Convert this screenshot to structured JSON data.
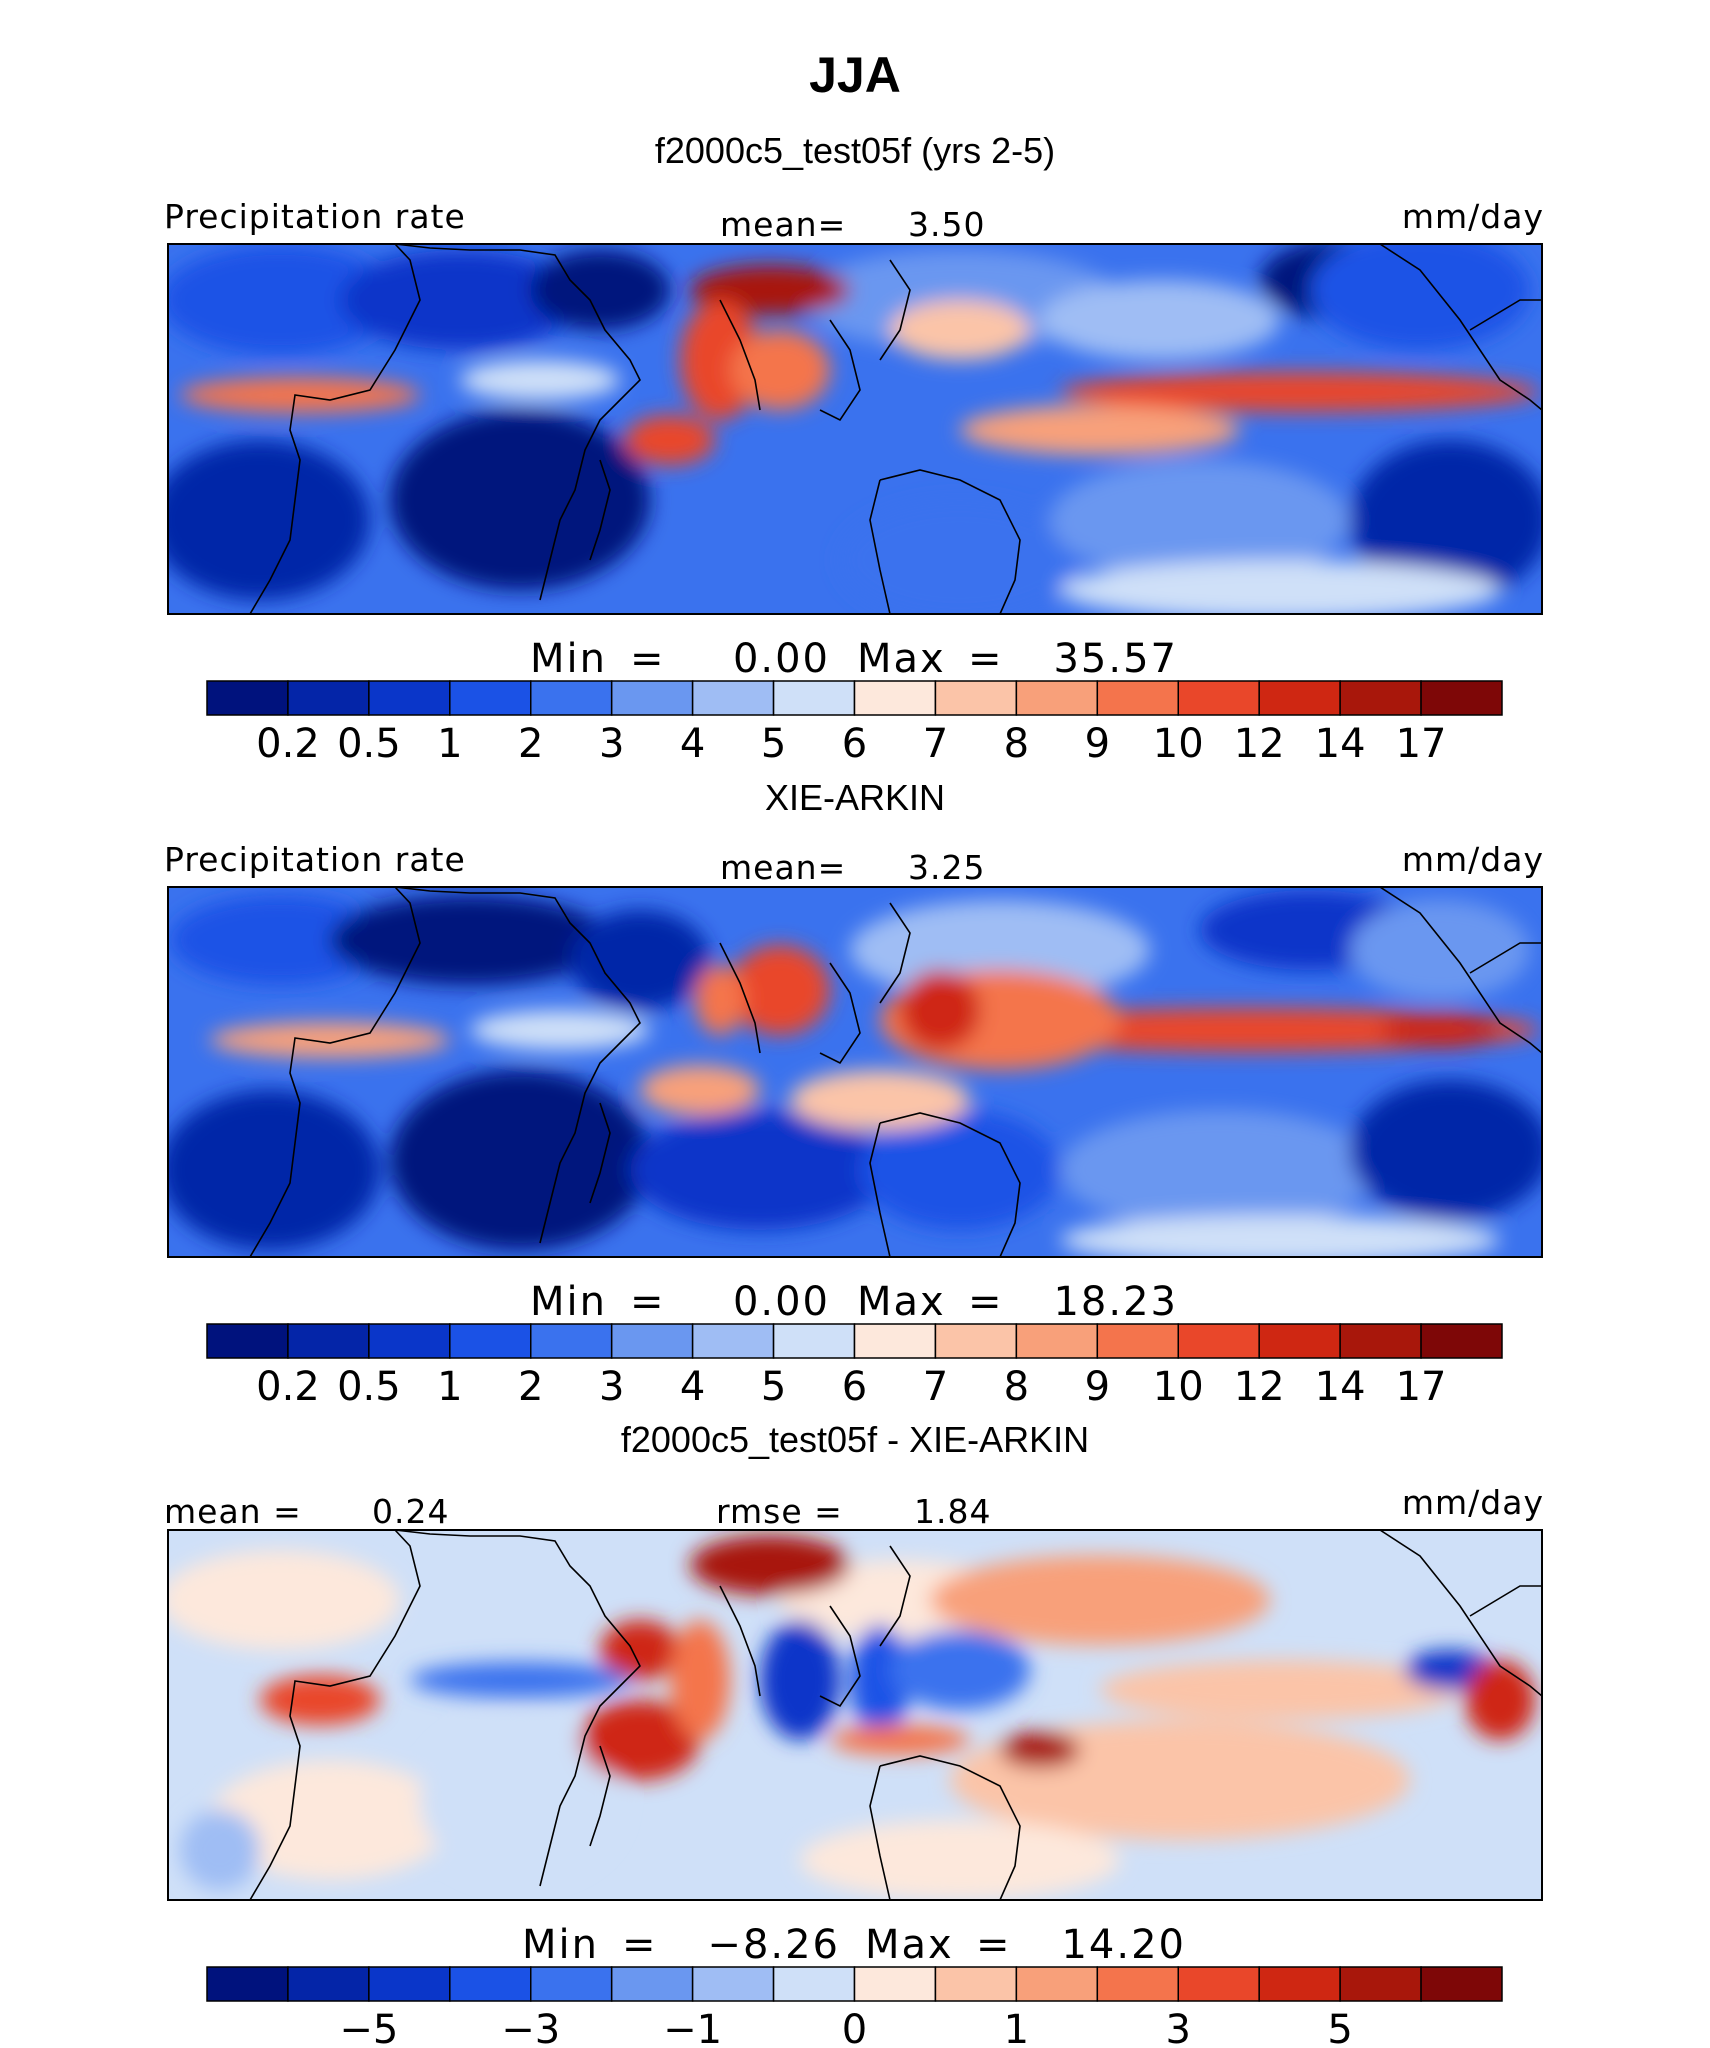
{
  "title": "JJA",
  "panels": [
    {
      "subtitle": "f2000c5_test05f (yrs 2-5)",
      "left_label": "Precipitation rate",
      "center_label": "mean=",
      "center_value": "3.50",
      "right_label": "mm/day",
      "min_label": "Min",
      "min_value": "0.00",
      "max_label": "Max",
      "max_value": "35.57",
      "colorbar_ticks": [
        "0.2",
        "0.5",
        "1",
        "2",
        "3",
        "4",
        "5",
        "6",
        "7",
        "8",
        "9",
        "10",
        "12",
        "14",
        "17"
      ]
    },
    {
      "subtitle": "XIE-ARKIN",
      "left_label": "Precipitation rate",
      "center_label": "mean=",
      "center_value": "3.25",
      "right_label": "mm/day",
      "min_label": "Min",
      "min_value": "0.00",
      "max_label": "Max",
      "max_value": "18.23",
      "colorbar_ticks": [
        "0.2",
        "0.5",
        "1",
        "2",
        "3",
        "4",
        "5",
        "6",
        "7",
        "8",
        "9",
        "10",
        "12",
        "14",
        "17"
      ]
    },
    {
      "subtitle": "f2000c5_test05f - XIE-ARKIN",
      "left_label": "mean =",
      "left_value": "0.24",
      "center_label": "rmse =",
      "center_value": "1.84",
      "right_label": "mm/day",
      "min_label": "Min",
      "min_value": "−8.26",
      "max_label": "Max",
      "max_value": "14.20",
      "colorbar_ticks": [
        "−5",
        "−3",
        "−1",
        "0",
        "1",
        "3",
        "5"
      ]
    }
  ],
  "colors": {
    "precip_palette": [
      "#00127d",
      "#0425a8",
      "#0a36c9",
      "#1b52e6",
      "#3a72ee",
      "#6a97f0",
      "#9fbdf4",
      "#cfe0f8",
      "#fde8dc",
      "#fbc4a8",
      "#f8a07a",
      "#f4744c",
      "#e9472a",
      "#cf2712",
      "#a8170b",
      "#7e0707"
    ],
    "diff_palette": [
      "#00127d",
      "#0425a8",
      "#0a36c9",
      "#1b52e6",
      "#3a72ee",
      "#6a97f0",
      "#9fbdf4",
      "#cfe0f8",
      "#fde8dc",
      "#fbc4a8",
      "#f8a07a",
      "#f4744c",
      "#e9472a",
      "#cf2712",
      "#a8170b",
      "#7e0707"
    ]
  },
  "chart_data": [
    {
      "type": "heatmap",
      "title": "f2000c5_test05f (yrs 2-5)",
      "variable": "Precipitation rate",
      "units": "mm/day",
      "mean": 3.5,
      "min": 0.0,
      "max": 35.57,
      "levels": [
        0.2,
        0.5,
        1,
        2,
        3,
        4,
        5,
        6,
        7,
        8,
        9,
        10,
        12,
        14,
        17
      ]
    },
    {
      "type": "heatmap",
      "title": "XIE-ARKIN",
      "variable": "Precipitation rate",
      "units": "mm/day",
      "mean": 3.25,
      "min": 0.0,
      "max": 18.23,
      "levels": [
        0.2,
        0.5,
        1,
        2,
        3,
        4,
        5,
        6,
        7,
        8,
        9,
        10,
        12,
        14,
        17
      ]
    },
    {
      "type": "heatmap",
      "title": "f2000c5_test05f - XIE-ARKIN",
      "units": "mm/day",
      "mean": 0.24,
      "rmse": 1.84,
      "min": -8.26,
      "max": 14.2,
      "levels": [
        -5,
        -3,
        -1,
        0,
        1,
        3,
        5
      ]
    }
  ]
}
